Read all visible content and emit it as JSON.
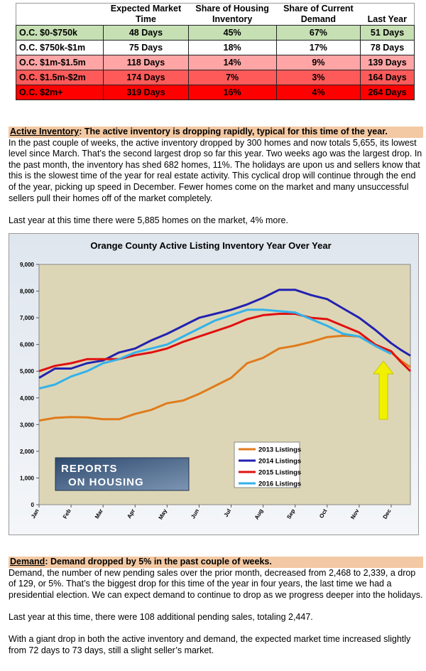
{
  "table": {
    "headers": [
      [],
      [
        "Expected Market",
        "Time"
      ],
      [
        "Share of Housing",
        "Inventory"
      ],
      [
        "Share of Current",
        "Demand"
      ],
      [
        "",
        "Last Year"
      ]
    ],
    "rows": [
      [
        "O.C. $0-$750k",
        "48 Days",
        "45%",
        "67%",
        "51 Days"
      ],
      [
        "O.C. $750k-$1m",
        "75 Days",
        "18%",
        "17%",
        "78 Days"
      ],
      [
        "O.C. $1m-$1.5m",
        "118 Days",
        "14%",
        "9%",
        "139 Days"
      ],
      [
        "O.C. $1.5m-$2m",
        "174 Days",
        "7%",
        "3%",
        "164 Days"
      ],
      [
        "O.C. $2m+",
        "319 Days",
        "16%",
        "4%",
        "264 Days"
      ]
    ]
  },
  "inventory": {
    "label": "Active Inventory",
    "heading": ": The active inventory is dropping rapidly, typical for this time of the year.",
    "paragraphs": [
      "In the past couple of weeks, the active inventory dropped by 300 homes and now totals 5,655, its lowest level since March. That’s the second largest drop so far this year. Two weeks ago was the largest drop. In the past month, the inventory has shed 682 homes, 11%. The holidays are upon us and sellers know that this is the slowest time of the year for real estate activity. This cyclical drop will continue through the end of the year, picking up speed in December. Fewer homes come on the market and many unsuccessful sellers pull their homes off of the market completely.",
      "Last year at this time there were 5,885 homes on the market, 4% more."
    ]
  },
  "chart_data": {
    "type": "line",
    "title": "Orange County Active Listing Inventory Year Over Year",
    "logo_lines": [
      "REPORTS",
      "ON HOUSING"
    ],
    "x": [
      0,
      0.5,
      1,
      1.5,
      2,
      2.5,
      3,
      3.5,
      4,
      4.5,
      5,
      5.5,
      6,
      6.5,
      7,
      7.5,
      8,
      8.5,
      9,
      9.5,
      10,
      10.5,
      11,
      11.3,
      11.6
    ],
    "xlim": [
      0,
      11.6
    ],
    "xticks": [
      {
        "value": 0,
        "label": "Jan"
      },
      {
        "value": 1,
        "label": "Feb"
      },
      {
        "value": 2,
        "label": "Mar"
      },
      {
        "value": 3,
        "label": "Apr"
      },
      {
        "value": 4,
        "label": "May"
      },
      {
        "value": 5,
        "label": "Jun"
      },
      {
        "value": 6,
        "label": "Jul"
      },
      {
        "value": 7,
        "label": "Aug"
      },
      {
        "value": 8,
        "label": "Sep"
      },
      {
        "value": 9,
        "label": "Oct"
      },
      {
        "value": 10,
        "label": "Nov"
      },
      {
        "value": 11,
        "label": "Dec"
      }
    ],
    "ylim": [
      0,
      9000
    ],
    "yticks": [
      0,
      {
        "value": 1000,
        "label": "1,000"
      },
      {
        "value": 2000,
        "label": "2,000"
      },
      {
        "value": 3000,
        "label": "3,000"
      },
      {
        "value": 4000,
        "label": "4,000"
      },
      {
        "value": 5000,
        "label": "5,000"
      },
      {
        "value": 6000,
        "label": "6,000"
      },
      {
        "value": 7000,
        "label": "7,000"
      },
      {
        "value": 8000,
        "label": "8,000"
      },
      {
        "value": 9000,
        "label": "9,000"
      }
    ],
    "grid": false,
    "series": [
      {
        "name": "2013 Listings",
        "color": "#e07b1c",
        "values": [
          3150,
          3250,
          3280,
          3270,
          3200,
          3200,
          3400,
          3550,
          3800,
          3900,
          4150,
          4450,
          4750,
          5300,
          5500,
          5850,
          5950,
          6100,
          6280,
          6330,
          6300,
          6000,
          5700,
          5400,
          5150
        ]
      },
      {
        "name": "2014 Listings",
        "color": "#2222b0",
        "values": [
          4750,
          5100,
          5100,
          5300,
          5400,
          5700,
          5850,
          6150,
          6400,
          6700,
          7000,
          7150,
          7300,
          7500,
          7750,
          8050,
          8050,
          7850,
          7700,
          7350,
          7000,
          6550,
          6050,
          5800,
          5580
        ]
      },
      {
        "name": "2015 Listings",
        "color": "#e01010",
        "values": [
          5000,
          5200,
          5300,
          5450,
          5450,
          5450,
          5600,
          5700,
          5850,
          6100,
          6300,
          6500,
          6700,
          6950,
          7100,
          7150,
          7150,
          7000,
          6950,
          6700,
          6450,
          6000,
          5750,
          5350,
          5000
        ]
      },
      {
        "name": "2016 Listings",
        "color": "#33b2ea",
        "values": [
          4350,
          4500,
          4800,
          5000,
          5300,
          5450,
          5700,
          5850,
          6000,
          6300,
          6600,
          6900,
          7100,
          7300,
          7300,
          7250,
          7200,
          6950,
          6700,
          6400,
          6300,
          5950,
          5650,
          null,
          null
        ]
      }
    ]
  },
  "demand": {
    "label": "Demand",
    "heading": ": Demand dropped by 5% in the past couple of weeks.",
    "paragraphs": [
      "Demand, the number of new pending sales over the prior month, decreased from 2,468 to 2,339, a drop of 129, or 5%. That’s the biggest drop for this time of the year in four years, the last time we had a presidential election. We can expect demand to continue to drop as we progress deeper into the holidays.",
      "Last year at this time, there were 108 additional pending sales, totaling 2,447.",
      "With a giant drop in both the active inventory and demand, the expected market time increased slightly from 72 days to 73 days, still a slight seller’s market."
    ]
  }
}
